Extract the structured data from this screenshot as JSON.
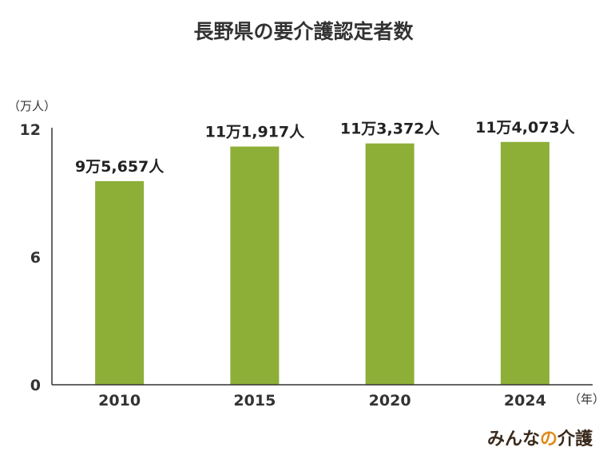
{
  "chart_data": {
    "type": "bar",
    "title": "長野県の要介護認定者数",
    "y_unit_label": "（万人）",
    "x_unit_label": "（年）",
    "categories": [
      "2010",
      "2015",
      "2020",
      "2024"
    ],
    "values": [
      9.5657,
      11.1917,
      11.3372,
      11.4073
    ],
    "data_labels": [
      "9万5,657人",
      "11万1,917人",
      "11万3,372人",
      "11万4,073人"
    ],
    "ylim": [
      0,
      12
    ],
    "yticks": [
      0,
      6,
      12
    ],
    "ytick_labels": [
      "0",
      "6",
      "12"
    ],
    "bar_color": "#8daf38",
    "grid": false,
    "legend": "none"
  },
  "brand": {
    "part1": "みんな",
    "part2": "の",
    "part3": "介護",
    "color_main": "#3a2a1c",
    "color_accent": "#e08a1a"
  }
}
